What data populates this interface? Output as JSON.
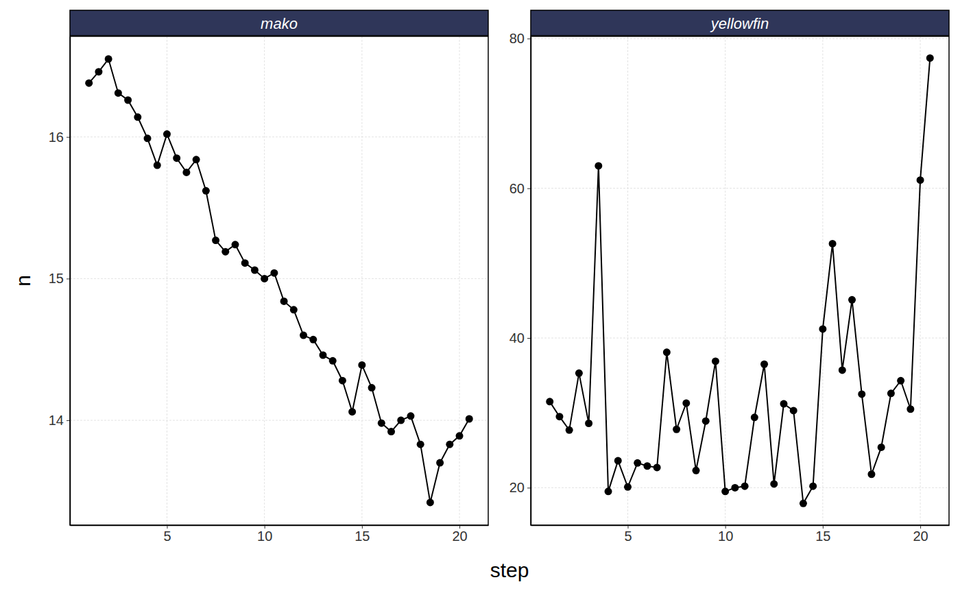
{
  "chart_data": {
    "type": "line",
    "x_label": "step",
    "y_label": "n",
    "color": "#000000",
    "marker": "circle",
    "grid": true,
    "x": [
      1,
      1.5,
      2,
      2.5,
      3,
      3.5,
      4,
      4.5,
      5,
      5.5,
      6,
      6.5,
      7,
      7.5,
      8,
      8.5,
      9,
      9.5,
      10,
      10.5,
      11,
      11.5,
      12,
      12.5,
      13,
      13.5,
      14,
      14.5,
      15,
      15.5,
      16,
      16.5,
      17,
      17.5,
      18,
      18.5,
      19,
      19.5,
      20,
      20.5
    ],
    "xlim": [
      0.025,
      21.475
    ],
    "xticks": [
      5,
      10,
      15,
      20
    ],
    "panels": [
      {
        "title": "mako",
        "values": [
          16.38,
          16.46,
          16.55,
          16.31,
          16.26,
          16.14,
          15.99,
          15.8,
          16.02,
          15.85,
          15.75,
          15.84,
          15.62,
          15.27,
          15.19,
          15.24,
          15.11,
          15.06,
          15.0,
          15.04,
          14.84,
          14.78,
          14.6,
          14.57,
          14.46,
          14.42,
          14.28,
          14.06,
          14.39,
          14.23,
          13.98,
          13.92,
          14.0,
          14.03,
          13.83,
          13.42,
          13.7,
          13.83,
          13.89,
          14.01
        ],
        "ylim": [
          13.26,
          16.71
        ],
        "yticks": [
          14,
          15,
          16
        ]
      },
      {
        "title": "yellowfin",
        "values": [
          31.5,
          29.5,
          27.7,
          35.3,
          28.6,
          63.0,
          19.5,
          23.6,
          20.1,
          23.3,
          22.9,
          22.7,
          38.1,
          27.8,
          31.3,
          22.3,
          28.9,
          36.9,
          19.5,
          20.0,
          20.2,
          29.4,
          36.5,
          20.5,
          31.2,
          30.3,
          17.9,
          20.2,
          41.2,
          52.6,
          35.7,
          45.1,
          32.5,
          21.8,
          25.4,
          32.6,
          34.3,
          30.5,
          61.1,
          77.4
        ],
        "ylim": [
          15.0,
          80.3
        ],
        "yticks": [
          20,
          40,
          60,
          80
        ]
      }
    ]
  }
}
